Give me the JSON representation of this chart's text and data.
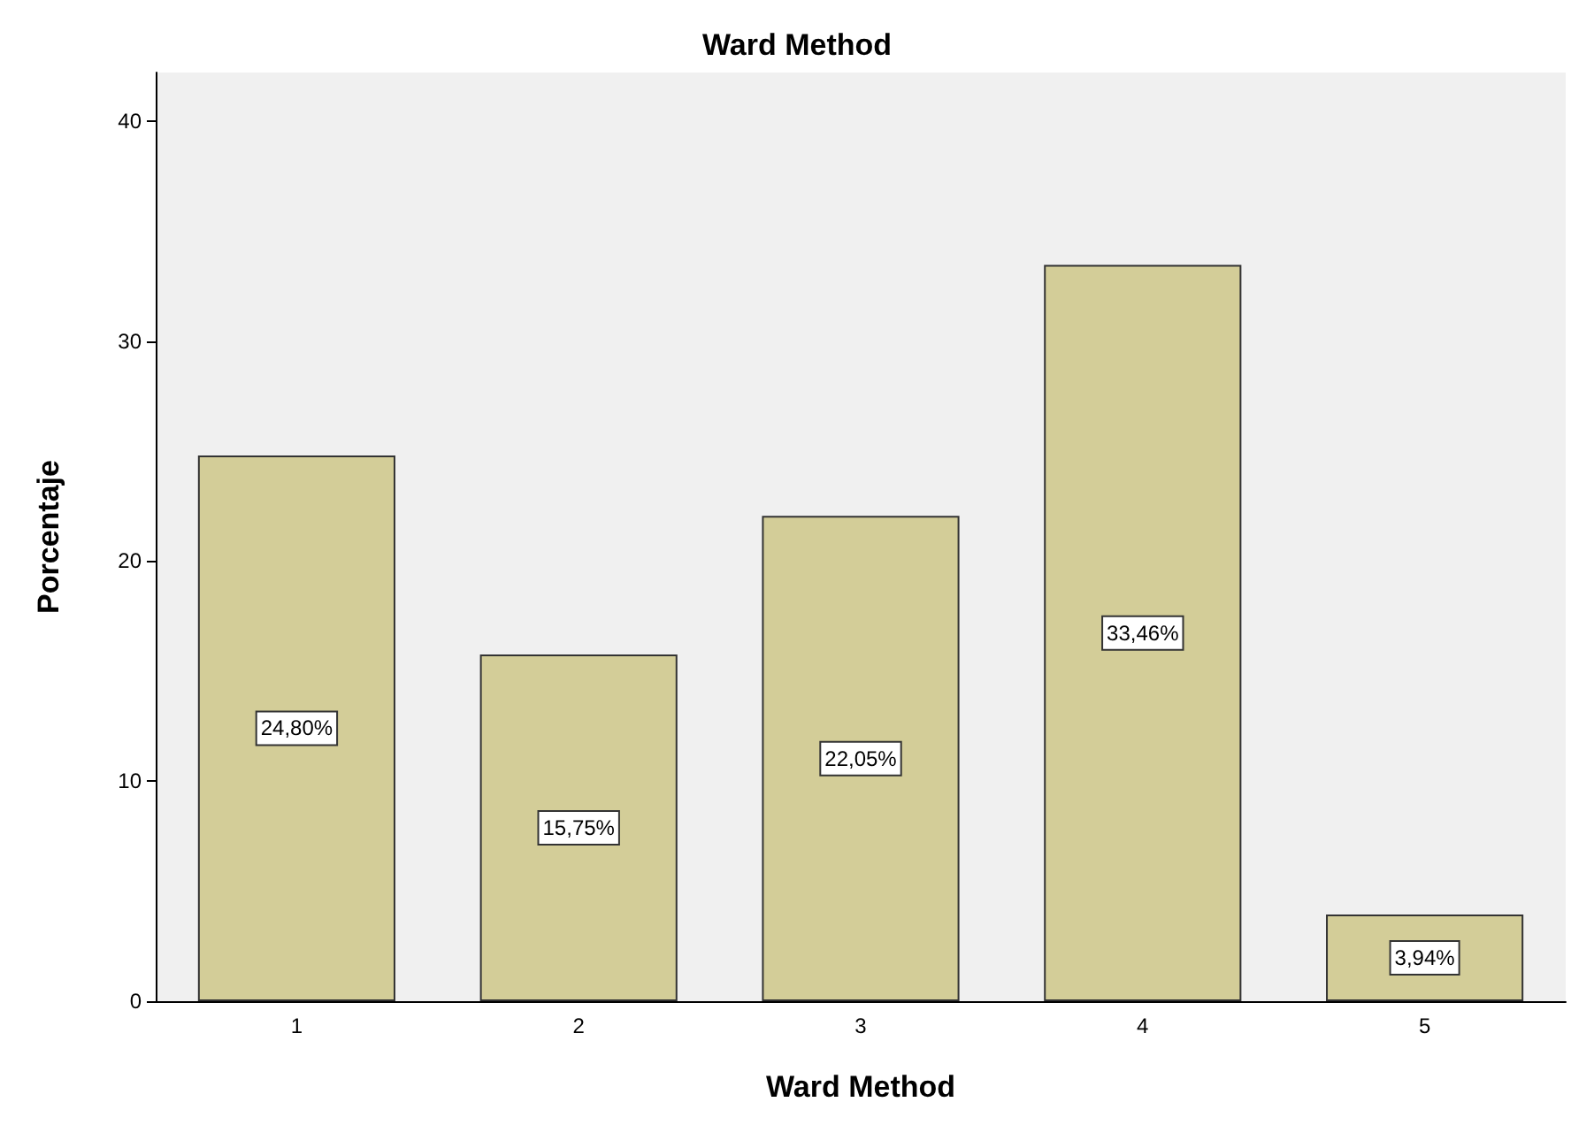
{
  "chart_data": {
    "type": "bar",
    "title": "Ward Method",
    "xlabel": "Ward Method",
    "ylabel": "Porcentaje",
    "categories": [
      "1",
      "2",
      "3",
      "4",
      "5"
    ],
    "values": [
      24.8,
      15.75,
      22.05,
      33.46,
      3.94
    ],
    "value_labels": [
      "24,80%",
      "15,75%",
      "22,05%",
      "33,46%",
      "3,94%"
    ],
    "color": "#d3cd98",
    "ylim": [
      0,
      42.2
    ],
    "yticks": [
      0,
      10,
      20,
      30,
      40
    ]
  }
}
